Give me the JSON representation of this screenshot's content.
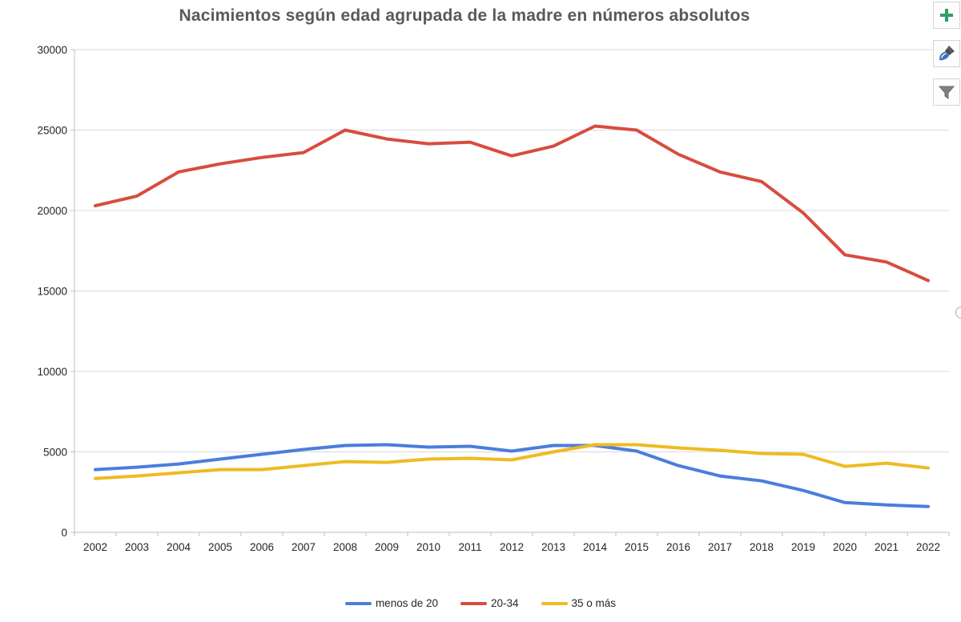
{
  "title": "Nacimientos según edad agrupada de la madre en números absolutos",
  "colors": {
    "title": "#595959",
    "gridline": "#D9D9D9",
    "axis": "#BFBFBF",
    "tick_label": "#262626",
    "button_border": "#D4D4D4",
    "plus_green": "#2F9E68",
    "brush_blue": "#3C74B9",
    "funnel_gray": "#7F7F7F"
  },
  "buttons": [
    {
      "id": "chart-elements-button",
      "icon": "plus-icon"
    },
    {
      "id": "chart-styles-button",
      "icon": "brush-icon"
    },
    {
      "id": "chart-filters-button",
      "icon": "funnel-icon"
    }
  ],
  "chart_data": {
    "type": "line",
    "title": "Nacimientos según edad agrupada de la madre en números absolutos",
    "categories": [
      "2002",
      "2003",
      "2004",
      "2005",
      "2006",
      "2007",
      "2008",
      "2009",
      "2010",
      "2011",
      "2012",
      "2013",
      "2014",
      "2015",
      "2016",
      "2017",
      "2018",
      "2019",
      "2020",
      "2021",
      "2022"
    ],
    "series": [
      {
        "name": "menos de 20",
        "color": "#4A7EDC",
        "values": [
          3900,
          4050,
          4250,
          4550,
          4850,
          5150,
          5400,
          5450,
          5300,
          5350,
          5050,
          5400,
          5400,
          5050,
          4150,
          3500,
          3200,
          2600,
          1850,
          1700,
          1600
        ]
      },
      {
        "name": "20-34",
        "color": "#D84C3F",
        "values": [
          20300,
          20900,
          22400,
          22900,
          23300,
          23600,
          25000,
          24450,
          24150,
          24250,
          23400,
          24000,
          25250,
          25000,
          23500,
          22400,
          21800,
          19850,
          17250,
          16800,
          15650
        ]
      },
      {
        "name": "35 o más",
        "color": "#EEBB22",
        "values": [
          3350,
          3500,
          3700,
          3900,
          3900,
          4150,
          4400,
          4350,
          4550,
          4600,
          4500,
          5000,
          5450,
          5450,
          5250,
          5100,
          4900,
          4850,
          4100,
          4300,
          4000
        ]
      }
    ],
    "ylim": [
      0,
      30000
    ],
    "yticks": [
      0,
      5000,
      10000,
      15000,
      20000,
      25000,
      30000
    ],
    "xlabel": "",
    "ylabel": "",
    "grid": true,
    "legend_position": "bottom"
  }
}
